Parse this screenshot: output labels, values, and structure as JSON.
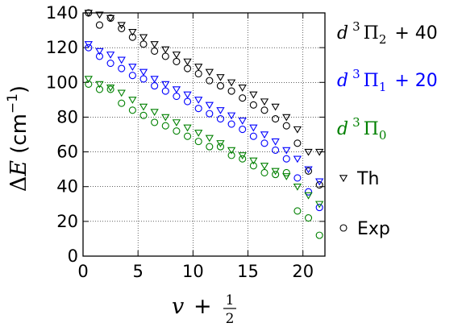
{
  "chart_data": {
    "type": "scatter",
    "xlabel": {
      "var": "v",
      "plus": "+",
      "frac_num": "1",
      "frac_den": "2"
    },
    "ylabel": {
      "delta": "Δ",
      "var": "E",
      "unit_open": "(cm",
      "exp": "−1",
      "unit_close": ")"
    },
    "xlim": [
      0,
      22
    ],
    "ylim": [
      0,
      140
    ],
    "xticks": [
      "0",
      "5",
      "10",
      "15",
      "20"
    ],
    "yticks": [
      "0",
      "20",
      "40",
      "60",
      "80",
      "100",
      "120",
      "140"
    ],
    "grid": true,
    "legend_placement": "right",
    "marker_legend": [
      {
        "marker": "triangle-down-open",
        "label": "Th"
      },
      {
        "marker": "circle-open",
        "label": "Exp"
      }
    ],
    "series": [
      {
        "name": "d³Π₂ + 40",
        "label_parts": {
          "d": "d",
          "sup": "3",
          "pi": "Π",
          "sub": "2",
          "offset": "+ 40"
        },
        "color": "#000000",
        "th_x": [
          0.5,
          1.5,
          2.5,
          3.5,
          4.5,
          5.5,
          6.5,
          7.5,
          8.5,
          9.5,
          10.5,
          11.5,
          12.5,
          13.5,
          14.5,
          15.5,
          16.5,
          17.5,
          18.5,
          19.5,
          20.5,
          21.5
        ],
        "th_y": [
          140,
          139,
          137,
          133,
          129,
          126,
          122,
          119,
          116,
          112,
          109,
          106,
          103,
          100,
          97,
          93,
          89,
          86,
          80,
          73,
          60,
          60
        ],
        "exp_x": [
          0.5,
          1.5,
          2.5,
          3.5,
          4.5,
          5.5,
          6.5,
          7.5,
          8.5,
          9.5,
          10.5,
          11.5,
          12.5,
          13.5,
          14.5,
          15.5,
          16.5,
          17.5,
          18.5,
          19.5,
          20.5,
          21.5
        ],
        "exp_y": [
          140,
          133,
          137,
          131,
          126,
          122,
          118,
          115,
          112,
          108,
          105,
          101,
          98,
          95,
          91,
          87,
          84,
          79,
          75,
          65,
          49,
          41
        ]
      },
      {
        "name": "d³Π₁ + 20",
        "label_parts": {
          "d": "d",
          "sup": "3",
          "pi": "Π",
          "sub": "1",
          "offset": "+ 20"
        },
        "color": "#0000ff",
        "th_x": [
          0.5,
          1.5,
          2.5,
          3.5,
          4.5,
          5.5,
          6.5,
          7.5,
          8.5,
          9.5,
          10.5,
          11.5,
          12.5,
          13.5,
          14.5,
          15.5,
          16.5,
          17.5,
          18.5,
          19.5,
          20.5,
          21.5
        ],
        "th_y": [
          122,
          118,
          116,
          113,
          109,
          106,
          102,
          99,
          96,
          93,
          90,
          87,
          84,
          81,
          78,
          74,
          70,
          66,
          61,
          56,
          50,
          43
        ],
        "exp_x": [
          0.5,
          1.5,
          2.5,
          3.5,
          4.5,
          5.5,
          6.5,
          7.5,
          8.5,
          9.5,
          10.5,
          11.5,
          12.5,
          13.5,
          14.5,
          15.5,
          16.5,
          17.5,
          18.5,
          19.5,
          20.5,
          21.5
        ],
        "exp_y": [
          120,
          115,
          111,
          108,
          104,
          102,
          98,
          95,
          92,
          89,
          85,
          82,
          79,
          76,
          73,
          69,
          65,
          61,
          56,
          45,
          37,
          28
        ]
      },
      {
        "name": "d³Π₀",
        "label_parts": {
          "d": "d",
          "sup": "3",
          "pi": "Π",
          "sub": "0",
          "offset": ""
        },
        "color": "#008000",
        "th_x": [
          0.5,
          1.5,
          2.5,
          3.5,
          4.5,
          5.5,
          6.5,
          7.5,
          8.5,
          9.5,
          10.5,
          11.5,
          12.5,
          13.5,
          14.5,
          15.5,
          16.5,
          17.5,
          18.5,
          19.5,
          20.5,
          21.5
        ],
        "th_y": [
          102,
          99,
          97,
          94,
          90,
          86,
          83,
          80,
          77,
          74,
          71,
          68,
          65,
          61,
          58,
          55,
          52,
          49,
          46,
          40,
          35,
          30
        ],
        "exp_x": [
          0.5,
          1.5,
          2.5,
          3.5,
          4.5,
          5.5,
          6.5,
          7.5,
          8.5,
          9.5,
          10.5,
          11.5,
          12.5,
          13.5,
          14.5,
          15.5,
          16.5,
          17.5,
          18.5,
          19.5,
          20.5,
          21.5
        ],
        "exp_y": [
          99,
          96,
          96,
          88,
          84,
          81,
          77,
          75,
          72,
          69,
          66,
          63,
          63,
          58,
          56,
          52,
          48,
          47,
          48,
          26,
          22,
          12
        ]
      }
    ]
  }
}
